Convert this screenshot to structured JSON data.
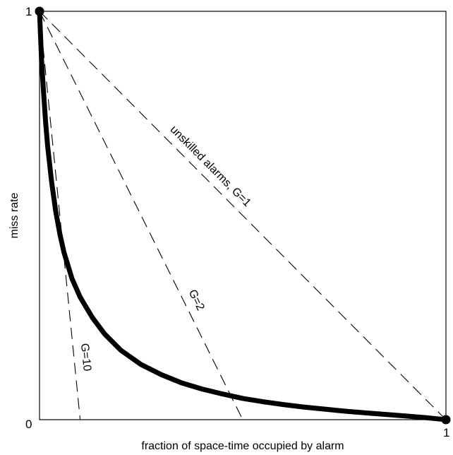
{
  "chart_data": {
    "type": "line",
    "title": "",
    "xlabel": "fraction of space-time occupied by alarm",
    "ylabel": "miss rate",
    "xlim": [
      0,
      1
    ],
    "ylim": [
      0,
      1
    ],
    "grid": false,
    "legend": "none",
    "x_ticks": [
      {
        "value": 0,
        "label": "0"
      },
      {
        "value": 1,
        "label": "1"
      }
    ],
    "y_ticks": [
      {
        "value": 1,
        "label": "1"
      }
    ],
    "series": [
      {
        "style": "thick-solid-with-markers",
        "color": "#000000",
        "points": [
          [
            0.0,
            1.0
          ],
          [
            0.002,
            0.95
          ],
          [
            0.005,
            0.88
          ],
          [
            0.01,
            0.8
          ],
          [
            0.015,
            0.73
          ],
          [
            0.02,
            0.67
          ],
          [
            0.03,
            0.58
          ],
          [
            0.04,
            0.51
          ],
          [
            0.05,
            0.455
          ],
          [
            0.06,
            0.41
          ],
          [
            0.08,
            0.345
          ],
          [
            0.1,
            0.3
          ],
          [
            0.13,
            0.25
          ],
          [
            0.16,
            0.21
          ],
          [
            0.2,
            0.17
          ],
          [
            0.25,
            0.135
          ],
          [
            0.3,
            0.11
          ],
          [
            0.35,
            0.09
          ],
          [
            0.4,
            0.075
          ],
          [
            0.45,
            0.063
          ],
          [
            0.5,
            0.052
          ],
          [
            0.55,
            0.044
          ],
          [
            0.6,
            0.037
          ],
          [
            0.65,
            0.031
          ],
          [
            0.7,
            0.026
          ],
          [
            0.75,
            0.021
          ],
          [
            0.8,
            0.017
          ],
          [
            0.85,
            0.013
          ],
          [
            0.9,
            0.009
          ],
          [
            0.95,
            0.005
          ],
          [
            0.98,
            0.002
          ],
          [
            1.0,
            0.0
          ]
        ]
      },
      {
        "style": "dashed",
        "color": "#000000",
        "gain": 1,
        "points": [
          [
            0,
            1
          ],
          [
            1,
            0
          ]
        ]
      },
      {
        "style": "dashed",
        "color": "#000000",
        "gain": 2,
        "points": [
          [
            0,
            1
          ],
          [
            0.5,
            0
          ]
        ]
      },
      {
        "style": "dashed",
        "color": "#000000",
        "gain": 10,
        "points": [
          [
            0,
            1
          ],
          [
            0.1,
            0
          ]
        ]
      }
    ],
    "annotations": [
      {
        "text": "unskilled alarms, G=1",
        "line_gain": 1,
        "at_x": 0.4
      },
      {
        "text": "G=2",
        "line_gain": 2,
        "at_x": 0.36
      },
      {
        "text": "G=10",
        "line_gain": 10,
        "at_x": 0.085
      }
    ]
  }
}
